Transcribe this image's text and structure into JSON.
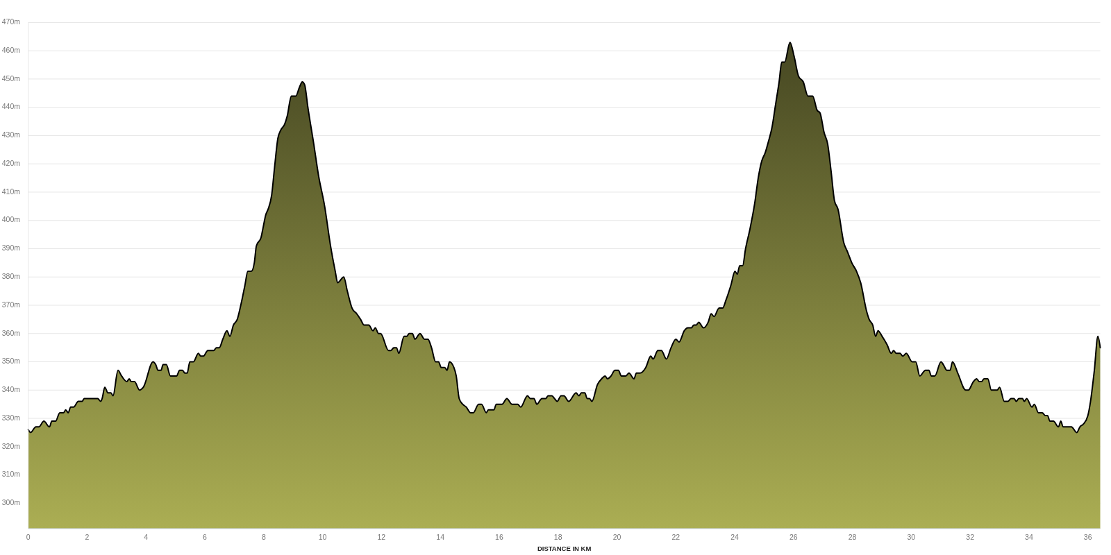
{
  "chart_data": {
    "type": "area",
    "xlabel": "DISTANCE IN KM",
    "color": "#787a3a",
    "grid": "y",
    "xlim": [
      0,
      36.42
    ],
    "ylim": [
      291,
      470
    ],
    "xticks": [
      0,
      2,
      4,
      6,
      8,
      10,
      12,
      14,
      16,
      18,
      20,
      22,
      24,
      26,
      28,
      30,
      32,
      34,
      36
    ],
    "yticks": [
      {
        "value": 300,
        "label": "300m"
      },
      {
        "value": 310,
        "label": "310m"
      },
      {
        "value": 320,
        "label": "320m"
      },
      {
        "value": 330,
        "label": "330m"
      },
      {
        "value": 340,
        "label": "340m"
      },
      {
        "value": 350,
        "label": "350m"
      },
      {
        "value": 360,
        "label": "360m"
      },
      {
        "value": 370,
        "label": "370m"
      },
      {
        "value": 380,
        "label": "380m"
      },
      {
        "value": 390,
        "label": "390m"
      },
      {
        "value": 400,
        "label": "400m"
      },
      {
        "value": 410,
        "label": "410m"
      },
      {
        "value": 420,
        "label": "420m"
      },
      {
        "value": 430,
        "label": "430m"
      },
      {
        "value": 440,
        "label": "440m"
      },
      {
        "value": 450,
        "label": "450m"
      },
      {
        "value": 460,
        "label": "460m"
      },
      {
        "value": 470,
        "label": "470m"
      }
    ],
    "x": [
      0,
      0.08,
      0.26,
      0.36,
      0.53,
      0.72,
      0.8,
      0.93,
      1.07,
      1.2,
      1.27,
      1.36,
      1.44,
      1.54,
      1.7,
      1.83,
      1.9,
      2.36,
      2.46,
      2.51,
      2.6,
      2.71,
      2.81,
      2.88,
      3.05,
      3.17,
      3.35,
      3.43,
      3.5,
      3.61,
      3.78,
      3.91,
      4.24,
      4.33,
      4.41,
      4.51,
      4.58,
      4.69,
      4.83,
      5.04,
      5.14,
      5.24,
      5.32,
      5.4,
      5.49,
      5.61,
      5.78,
      5.86,
      5.95,
      6.1,
      6.3,
      6.39,
      6.49,
      6.61,
      6.75,
      6.85,
      6.97,
      7.1,
      7.22,
      7.36,
      7.46,
      7.58,
      7.68,
      7.75,
      7.91,
      7.97,
      8.07,
      8.15,
      8.27,
      8.37,
      8.48,
      8.58,
      8.71,
      8.8,
      8.94,
      9.09,
      9.21,
      9.31,
      9.39,
      9.5,
      9.7,
      9.86,
      10.07,
      10.27,
      10.43,
      10.51,
      10.72,
      10.84,
      11.0,
      11.16,
      11.29,
      11.41,
      11.57,
      11.71,
      11.79,
      11.9,
      11.97,
      12.24,
      12.32,
      12.42,
      12.51,
      12.59,
      12.77,
      12.86,
      12.94,
      13.05,
      13.14,
      13.31,
      13.46,
      13.58,
      13.7,
      13.84,
      13.94,
      14.03,
      14.15,
      14.23,
      14.31,
      14.46,
      14.54,
      14.64,
      14.76,
      14.88,
      15.03,
      15.12,
      15.3,
      15.4,
      15.56,
      15.63,
      15.82,
      15.9,
      16.1,
      16.26,
      16.43,
      16.63,
      16.73,
      16.96,
      17.06,
      17.18,
      17.28,
      17.45,
      17.58,
      17.66,
      17.79,
      17.88,
      17.97,
      18.1,
      18.2,
      18.36,
      18.61,
      18.71,
      18.79,
      18.91,
      18.99,
      19.07,
      19.15,
      19.34,
      19.48,
      19.6,
      19.68,
      19.8,
      19.93,
      20.05,
      20.15,
      20.3,
      20.41,
      20.58,
      20.66,
      20.78,
      20.98,
      21.15,
      21.23,
      21.39,
      21.51,
      21.68,
      21.84,
      22.0,
      22.11,
      22.29,
      22.41,
      22.53,
      22.61,
      22.69,
      22.78,
      22.94,
      23.1,
      23.2,
      23.3,
      23.47,
      23.59,
      23.71,
      23.87,
      24.01,
      24.09,
      24.17,
      24.27,
      24.37,
      24.52,
      24.68,
      24.8,
      24.92,
      25.04,
      25.15,
      25.27,
      25.39,
      25.51,
      25.6,
      25.7,
      25.88,
      26.02,
      26.17,
      26.33,
      26.49,
      26.65,
      26.8,
      26.9,
      27.04,
      27.16,
      27.28,
      27.39,
      27.51,
      27.71,
      27.83,
      27.98,
      28.14,
      28.28,
      28.48,
      28.57,
      28.69,
      28.79,
      28.87,
      29.01,
      29.18,
      29.32,
      29.4,
      29.49,
      29.62,
      29.71,
      29.83,
      30.03,
      30.15,
      30.29,
      30.48,
      30.6,
      30.68,
      30.8,
      31.01,
      31.09,
      31.21,
      31.32,
      31.4,
      31.58,
      31.85,
      31.94,
      32.11,
      32.22,
      32.31,
      32.39,
      32.47,
      32.6,
      32.72,
      32.92,
      33.0,
      33.16,
      33.28,
      33.39,
      33.49,
      33.57,
      33.65,
      33.78,
      33.84,
      33.92,
      34.1,
      34.18,
      34.32,
      34.45,
      34.55,
      34.63,
      34.71,
      34.83,
      35.0,
      35.08,
      35.16,
      35.44,
      35.62,
      35.73,
      35.85,
      36.0,
      36.09,
      36.22,
      36.34,
      36.42
    ],
    "values": [
      326,
      325,
      327,
      327,
      329,
      327,
      329,
      329,
      332,
      332,
      333,
      332,
      334,
      334,
      336,
      336,
      337,
      337,
      336,
      337,
      341,
      339,
      339,
      338,
      347,
      345,
      343,
      344,
      343,
      343,
      340,
      341,
      350,
      349,
      347,
      347,
      349,
      349,
      345,
      345,
      347,
      347,
      346,
      346,
      350,
      350,
      353,
      352,
      352,
      354,
      354,
      355,
      355,
      358,
      361,
      359,
      363,
      365,
      370,
      377,
      382,
      382,
      385,
      391,
      394,
      397,
      402,
      404,
      409,
      419,
      429,
      432,
      434,
      437,
      444,
      444,
      447,
      449,
      448,
      440,
      427,
      416,
      405,
      391,
      382,
      378,
      380,
      375,
      369,
      367,
      365,
      363,
      363,
      361,
      362,
      360,
      360,
      354,
      354,
      355,
      355,
      353,
      359,
      359,
      360,
      360,
      358,
      360,
      358,
      358,
      355,
      350,
      350,
      348,
      348,
      347,
      350,
      348,
      345,
      337,
      335,
      334,
      332,
      332,
      335,
      335,
      332,
      333,
      333,
      335,
      335,
      337,
      335,
      335,
      334,
      338,
      337,
      337,
      335,
      337,
      337,
      338,
      338,
      337,
      336,
      338,
      338,
      336,
      339,
      338,
      339,
      339,
      337,
      337,
      336,
      342,
      344,
      345,
      344,
      345,
      347,
      347,
      345,
      345,
      346,
      344,
      346,
      346,
      348,
      352,
      351,
      354,
      354,
      351,
      355,
      358,
      357,
      361,
      362,
      362,
      363,
      363,
      364,
      362,
      364,
      367,
      366,
      369,
      369,
      372,
      377,
      382,
      381,
      384,
      384,
      390,
      397,
      406,
      415,
      421,
      424,
      428,
      433,
      441,
      449,
      456,
      456,
      463,
      458,
      451,
      449,
      444,
      444,
      439,
      438,
      431,
      427,
      417,
      407,
      404,
      392,
      389,
      385,
      382,
      378,
      368,
      365,
      363,
      359,
      361,
      359,
      356,
      353,
      354,
      353,
      353,
      352,
      353,
      350,
      350,
      345,
      347,
      347,
      345,
      345,
      350,
      349,
      347,
      347,
      350,
      346,
      340,
      340,
      343,
      344,
      343,
      343,
      344,
      344,
      340,
      340,
      341,
      336,
      336,
      337,
      337,
      336,
      337,
      337,
      336,
      337,
      334,
      335,
      332,
      332,
      331,
      331,
      329,
      329,
      327,
      329,
      327,
      327,
      325,
      327,
      328,
      331,
      336,
      347,
      359,
      355
    ]
  }
}
